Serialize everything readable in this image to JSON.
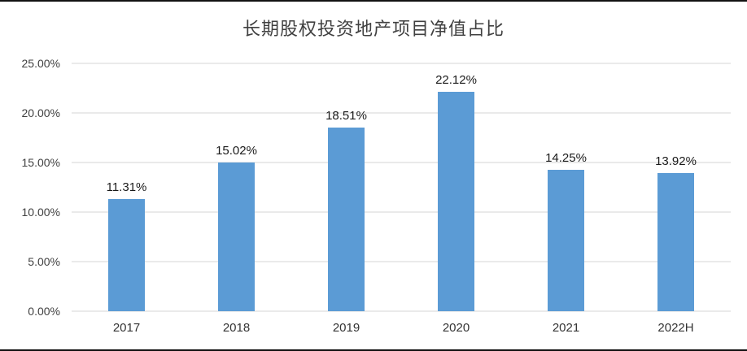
{
  "chart_data": {
    "type": "bar",
    "title": "长期股权投资地产项目净值占比",
    "categories": [
      "2017",
      "2018",
      "2019",
      "2020",
      "2021",
      "2022H"
    ],
    "values": [
      11.31,
      15.02,
      18.51,
      22.12,
      14.25,
      13.92
    ],
    "value_labels": [
      "11.31%",
      "15.02%",
      "18.51%",
      "22.12%",
      "14.25%",
      "13.92%"
    ],
    "xlabel": "",
    "ylabel": "",
    "ylim": [
      0,
      25
    ],
    "yticks": [
      "0.00%",
      "5.00%",
      "10.00%",
      "15.00%",
      "20.00%",
      "25.00%"
    ],
    "grid": true,
    "legend": false,
    "bar_color": "#5B9BD5",
    "gridline_color": "#D6D6D6"
  }
}
